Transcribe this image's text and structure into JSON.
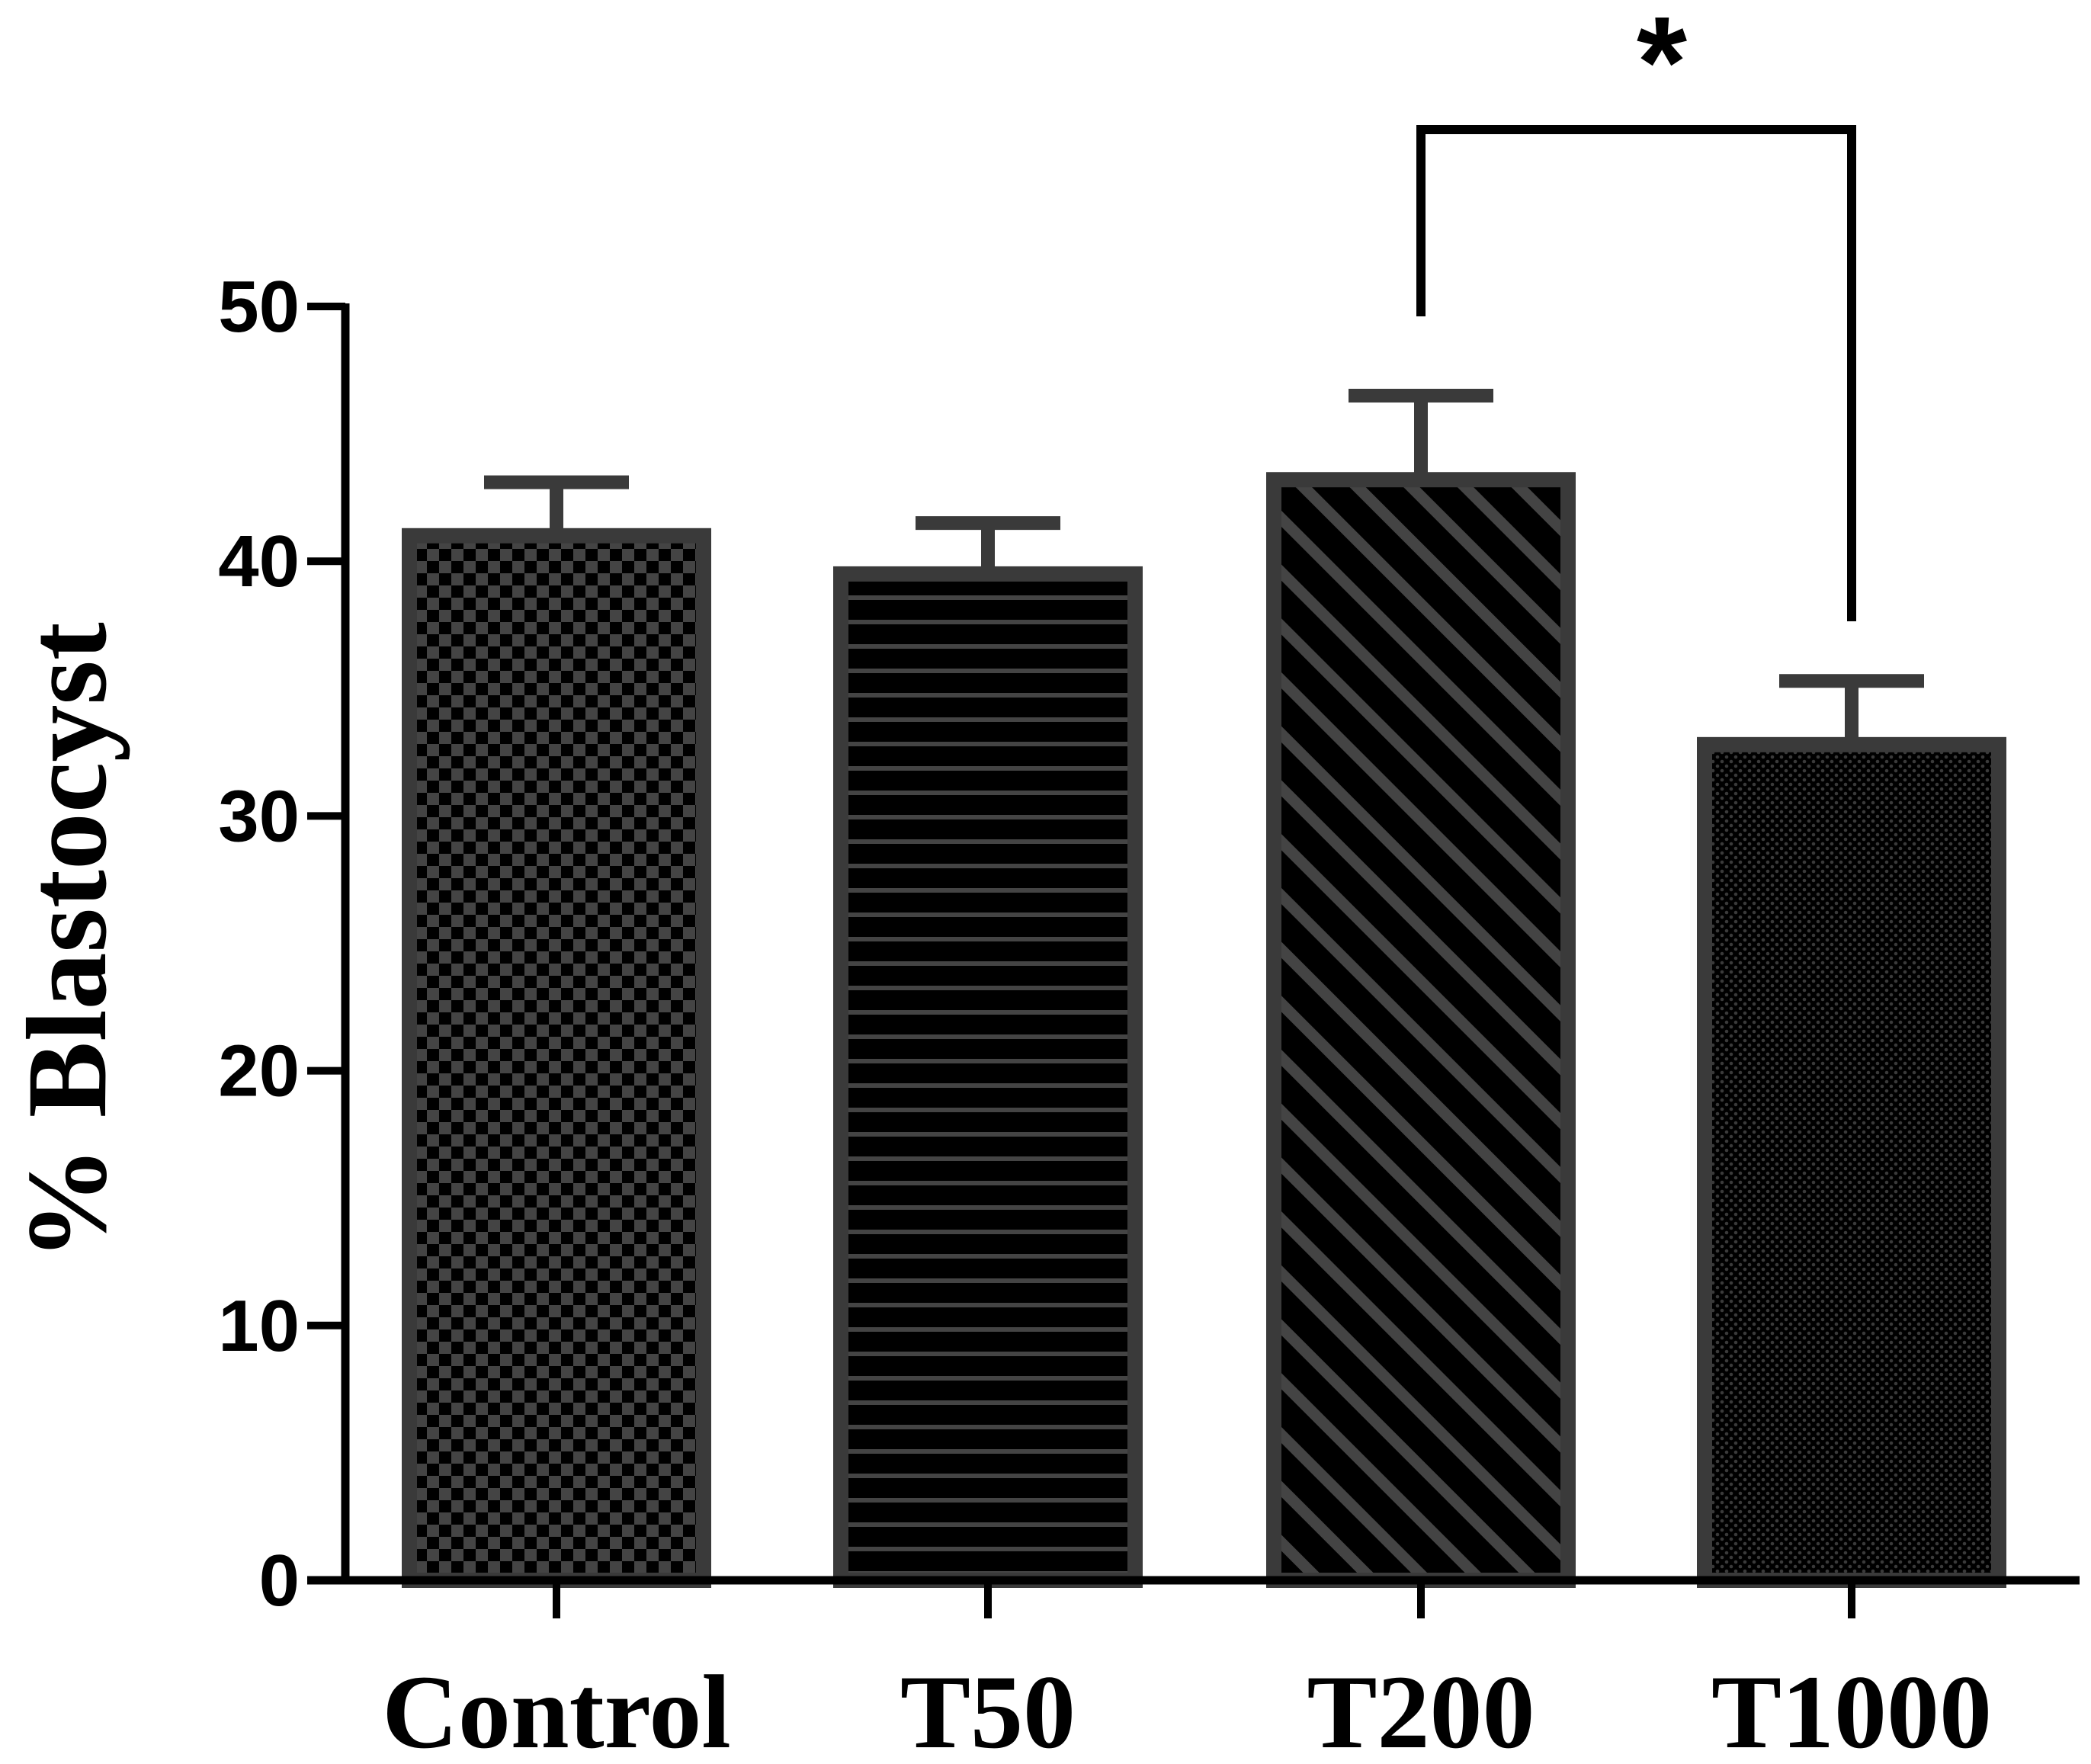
{
  "chart_data": {
    "type": "bar",
    "title": "",
    "xlabel": "",
    "ylabel": "% Blastocyst",
    "categories": [
      "Control",
      "T50",
      "T200",
      "T1000"
    ],
    "values": [
      41,
      39.5,
      43.2,
      32.8
    ],
    "error": [
      2.1,
      2.0,
      3.3,
      2.5
    ],
    "ylim": [
      0,
      50
    ],
    "yticks": [
      0,
      10,
      20,
      30,
      40,
      50
    ],
    "ytick_labels": [
      "0",
      "10",
      "20",
      "30",
      "40",
      "50"
    ],
    "patterns": [
      "checker",
      "horizontal-lines",
      "diagonal-lines",
      "dots"
    ],
    "grid": false,
    "significance": {
      "from": "T200",
      "to": "T1000",
      "label": "*"
    },
    "colors": {
      "bar_fill": "#000000",
      "bar_stroke": "#3a3a3a",
      "pattern": "#3d3d3d",
      "axis": "#000000"
    }
  }
}
